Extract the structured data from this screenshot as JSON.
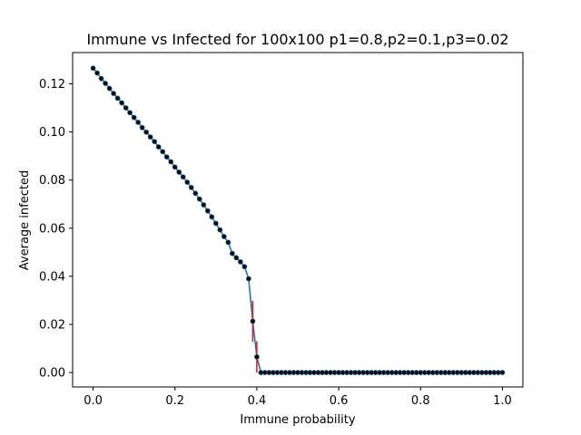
{
  "chart_data": {
    "type": "line",
    "title": "Immune vs Infected for 100x100 p1=0.8,p2=0.1,p3=0.02",
    "xlabel": "Immune probability",
    "ylabel": "Average infected",
    "xlim": [
      -0.05,
      1.05
    ],
    "ylim": [
      -0.006,
      0.133
    ],
    "xticks": [
      0.0,
      0.2,
      0.4,
      0.6,
      0.8,
      1.0
    ],
    "xtick_labels": [
      "0.0",
      "0.2",
      "0.4",
      "0.6",
      "0.8",
      "1.0"
    ],
    "yticks": [
      0.0,
      0.02,
      0.04,
      0.06,
      0.08,
      0.1,
      0.12
    ],
    "ytick_labels": [
      "0.00",
      "0.02",
      "0.04",
      "0.06",
      "0.08",
      "0.10",
      "0.12"
    ],
    "grid": false,
    "legend": false,
    "line_color": "#1f77b4",
    "marker_color": "#0a0a0a",
    "errorbar_color": "#d62728",
    "series": [
      {
        "x": [
          0.0,
          0.01,
          0.02,
          0.03,
          0.04,
          0.05,
          0.06,
          0.07,
          0.08,
          0.09,
          0.1,
          0.11,
          0.12,
          0.13,
          0.14,
          0.15,
          0.16,
          0.17,
          0.18,
          0.19,
          0.2,
          0.21,
          0.22,
          0.23,
          0.24,
          0.25,
          0.26,
          0.27,
          0.28,
          0.29,
          0.3,
          0.31,
          0.32,
          0.33,
          0.34,
          0.35,
          0.36,
          0.37,
          0.38,
          0.39,
          0.4,
          0.41,
          0.42,
          0.43,
          0.44,
          0.45,
          0.46,
          0.47,
          0.48,
          0.49,
          0.5,
          0.51,
          0.52,
          0.53,
          0.54,
          0.55,
          0.56,
          0.57,
          0.58,
          0.59,
          0.6,
          0.61,
          0.62,
          0.63,
          0.64,
          0.65,
          0.66,
          0.67,
          0.68,
          0.69,
          0.7,
          0.71,
          0.72,
          0.73,
          0.74,
          0.75,
          0.76,
          0.77,
          0.78,
          0.79,
          0.8,
          0.81,
          0.82,
          0.83,
          0.84,
          0.85,
          0.86,
          0.87,
          0.88,
          0.89,
          0.9,
          0.91,
          0.92,
          0.93,
          0.94,
          0.95,
          0.96,
          0.97,
          0.98,
          0.99,
          1.0
        ],
        "y": [
          0.1265,
          0.1245,
          0.1222,
          0.1202,
          0.1181,
          0.116,
          0.114,
          0.1121,
          0.11,
          0.108,
          0.106,
          0.104,
          0.1018,
          0.0999,
          0.0979,
          0.096,
          0.0938,
          0.0918,
          0.0896,
          0.0876,
          0.0854,
          0.0833,
          0.0813,
          0.0791,
          0.0769,
          0.0745,
          0.0721,
          0.0697,
          0.0672,
          0.0647,
          0.062,
          0.0593,
          0.0565,
          0.0541,
          0.0495,
          0.0477,
          0.046,
          0.044,
          0.039,
          0.0213,
          0.0065,
          0.0,
          0.0,
          0.0,
          0.0,
          0.0,
          0.0,
          0.0,
          0.0,
          0.0,
          0.0,
          0.0,
          0.0,
          0.0,
          0.0,
          0.0,
          0.0,
          0.0,
          0.0,
          0.0,
          0.0,
          0.0,
          0.0,
          0.0,
          0.0,
          0.0,
          0.0,
          0.0,
          0.0,
          0.0,
          0.0,
          0.0,
          0.0,
          0.0,
          0.0,
          0.0,
          0.0,
          0.0,
          0.0,
          0.0,
          0.0,
          0.0,
          0.0,
          0.0,
          0.0,
          0.0,
          0.0,
          0.0,
          0.0,
          0.0,
          0.0,
          0.0,
          0.0,
          0.0,
          0.0,
          0.0,
          0.0,
          0.0,
          0.0,
          0.0,
          0.0
        ],
        "yerr": [
          0,
          0,
          0,
          0,
          0,
          0,
          0,
          0,
          0,
          0,
          0,
          0,
          0,
          0,
          0,
          0,
          0,
          0,
          0,
          0,
          0,
          0,
          0,
          0,
          0,
          0,
          0,
          0,
          0,
          0,
          0,
          0,
          0,
          0,
          0,
          0,
          0,
          0,
          0.001,
          0.0085,
          0.0065,
          0,
          0,
          0,
          0,
          0,
          0,
          0,
          0,
          0,
          0,
          0,
          0,
          0,
          0,
          0,
          0,
          0,
          0,
          0,
          0,
          0,
          0,
          0,
          0,
          0,
          0,
          0,
          0,
          0,
          0,
          0,
          0,
          0,
          0,
          0,
          0,
          0,
          0,
          0,
          0,
          0,
          0,
          0,
          0,
          0,
          0,
          0,
          0,
          0,
          0,
          0,
          0,
          0,
          0,
          0,
          0,
          0,
          0,
          0,
          0
        ]
      }
    ]
  }
}
